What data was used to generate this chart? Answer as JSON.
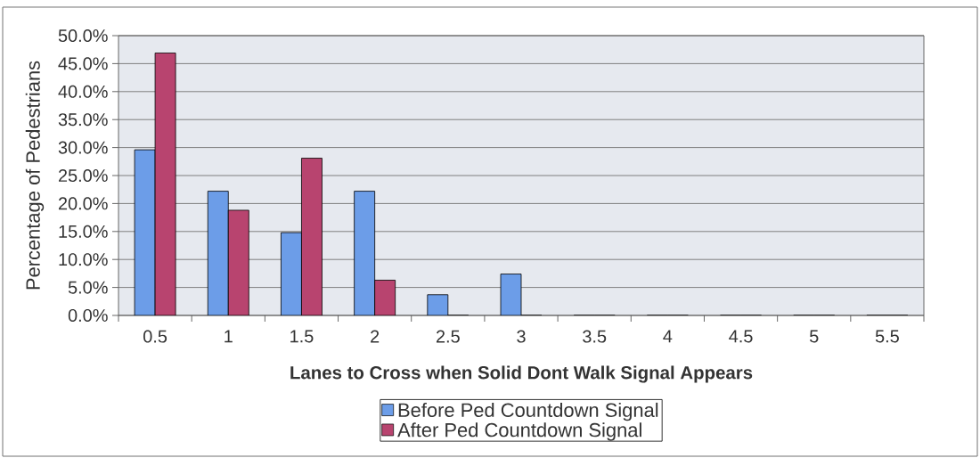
{
  "chart_data": {
    "type": "bar",
    "xlabel": "Lanes to Cross when Solid Dont Walk Signal Appears",
    "ylabel": "Percentage of Pedestrians",
    "categories": [
      "0.5",
      "1",
      "1.5",
      "2",
      "2.5",
      "3",
      "3.5",
      "4",
      "4.5",
      "5",
      "5.5"
    ],
    "series": [
      {
        "name": "Before Ped Countdown Signal",
        "color": "#6c9de8",
        "values": [
          29.6,
          22.2,
          14.8,
          22.2,
          3.7,
          7.4,
          0,
          0,
          0,
          0,
          0
        ]
      },
      {
        "name": "After Ped Countdown Signal",
        "color": "#b8446f",
        "values": [
          46.9,
          18.8,
          28.1,
          6.3,
          0,
          0,
          0,
          0,
          0,
          0,
          0
        ]
      }
    ],
    "ylim": [
      0,
      50
    ],
    "yticks": [
      {
        "value": 0,
        "label": "0.0%"
      },
      {
        "value": 5,
        "label": "5.0%"
      },
      {
        "value": 10,
        "label": "10.0%"
      },
      {
        "value": 15,
        "label": "15.0%"
      },
      {
        "value": 20,
        "label": "20.0%"
      },
      {
        "value": 25,
        "label": "25.0%"
      },
      {
        "value": 30,
        "label": "30.0%"
      },
      {
        "value": 35,
        "label": "35.0%"
      },
      {
        "value": 40,
        "label": "40.0%"
      },
      {
        "value": 45,
        "label": "45.0%"
      },
      {
        "value": 50,
        "label": "50.0%"
      }
    ],
    "grid": "y",
    "legend": "bottom"
  }
}
